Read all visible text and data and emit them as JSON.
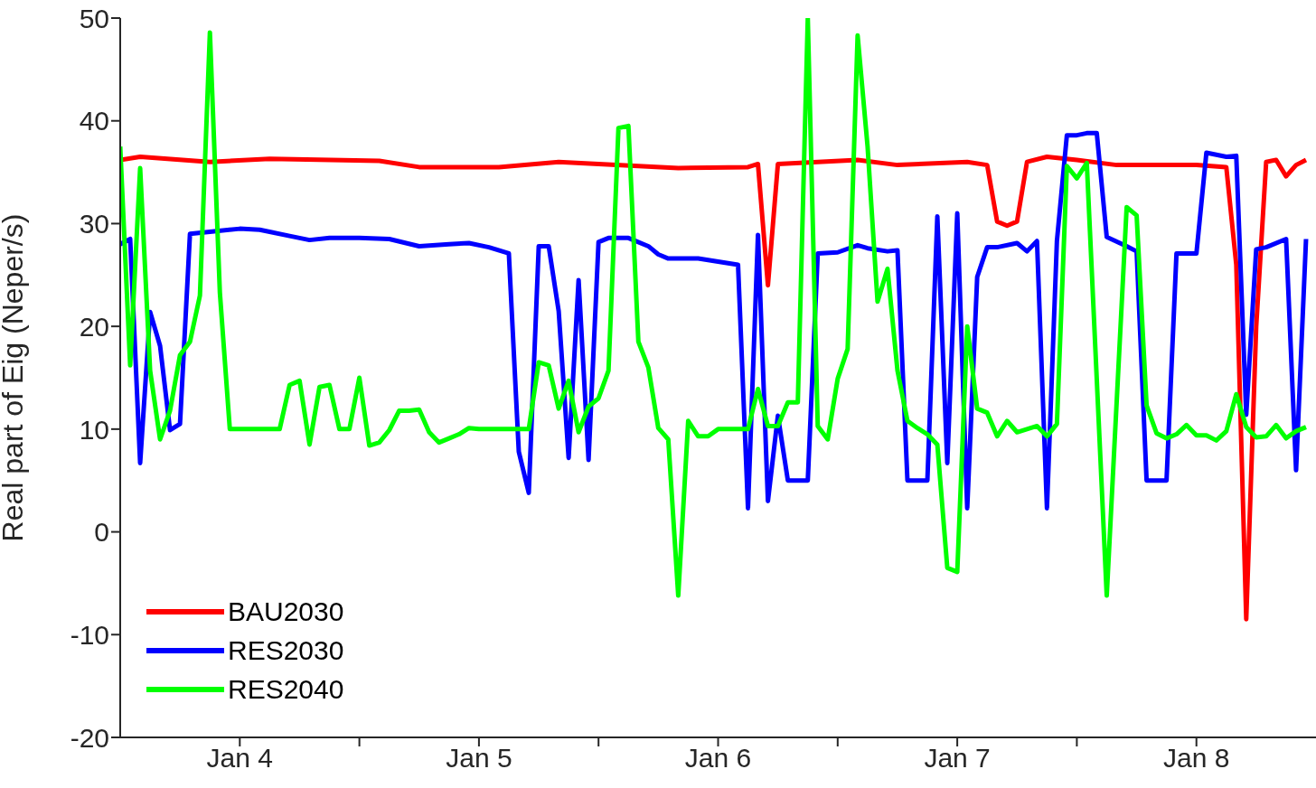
{
  "chart_data": {
    "type": "line",
    "ylabel": "Real part of Eig (Neper/s)",
    "xlim": [
      "--01-03T12:00",
      "--01-08T12:00"
    ],
    "ylim": [
      -20,
      50
    ],
    "yticks": [
      -20,
      -10,
      0,
      10,
      20,
      30,
      40,
      50
    ],
    "xticks": [
      {
        "value": "--01-04",
        "label": "Jan 4"
      },
      {
        "value": "--01-04T12:00",
        "label": null
      },
      {
        "value": "--01-05",
        "label": "Jan 5"
      },
      {
        "value": "--01-05T12:00",
        "label": null
      },
      {
        "value": "--01-06",
        "label": "Jan 6"
      },
      {
        "value": "--01-06T12:00",
        "label": null
      },
      {
        "value": "--01-07",
        "label": "Jan 7"
      },
      {
        "value": "--01-07T12:00",
        "label": null
      },
      {
        "value": "--01-08",
        "label": "Jan 8"
      }
    ],
    "legend": "bottom left",
    "series": [
      {
        "name": "BAU2030",
        "color": "#ff0000",
        "x": [
          "--01-03T12:00",
          "--01-03T14:00",
          "--01-03T21:00",
          "--01-04T03:00",
          "--01-04T14:00",
          "--01-04T18:00",
          "--01-05T02:00",
          "--01-05T08:00",
          "--01-05T20:00",
          "--01-06T03:00",
          "--01-06T04:00",
          "--01-06T05:00",
          "--01-06T06:00",
          "--01-06T14:00",
          "--01-06T18:00",
          "--01-07T01:00",
          "--01-07T03:00",
          "--01-07T04:00",
          "--01-07T05:00",
          "--01-07T06:00",
          "--01-07T07:00",
          "--01-07T09:00",
          "--01-07T12:00",
          "--01-07T16:00",
          "--01-08T00:00",
          "--01-08T03:00",
          "--01-08T04:00",
          "--01-08T05:00",
          "--01-08T06:00",
          "--01-08T07:00",
          "--01-08T08:00",
          "--01-08T09:00",
          "--01-08T10:00",
          "--01-08T11:00"
        ],
        "values": [
          36.2,
          36.5,
          36.0,
          36.3,
          36.1,
          35.5,
          35.5,
          36.0,
          35.4,
          35.5,
          35.8,
          24,
          35.8,
          36.2,
          35.7,
          36,
          35.7,
          30.2,
          29.8,
          30.2,
          36,
          36.5,
          36.2,
          35.7,
          35.7,
          35.5,
          26,
          -8.5,
          20,
          36,
          36.2,
          34.6,
          35.7,
          36.2
        ]
      },
      {
        "name": "RES2030",
        "color": "#0000ff",
        "x": [
          "--01-03T12:00",
          "--01-03T13:00",
          "--01-03T14:00",
          "--01-03T15:00",
          "--01-03T16:00",
          "--01-03T17:00",
          "--01-03T18:00",
          "--01-03T19:00",
          "--01-03T21:00",
          "--01-04T00:00",
          "--01-04T02:00",
          "--01-04T05:00",
          "--01-04T07:00",
          "--01-04T09:00",
          "--01-04T12:00",
          "--01-04T15:00",
          "--01-04T18:00",
          "--01-04T21:00",
          "--01-04T23:00",
          "--01-05T01:00",
          "--01-05T03:00",
          "--01-05T04:00",
          "--01-05T05:00",
          "--01-05T06:00",
          "--01-05T07:00",
          "--01-05T08:00",
          "--01-05T09:00",
          "--01-05T10:00",
          "--01-05T11:00",
          "--01-05T12:00",
          "--01-05T13:00",
          "--01-05T15:00",
          "--01-05T17:00",
          "--01-05T18:00",
          "--01-05T19:00",
          "--01-05T22:00",
          "--01-06T00:00",
          "--01-06T02:00",
          "--01-06T03:00",
          "--01-06T04:00",
          "--01-06T05:00",
          "--01-06T06:00",
          "--01-06T07:00",
          "--01-06T09:00",
          "--01-06T10:00",
          "--01-06T12:00",
          "--01-06T14:00",
          "--01-06T15:00",
          "--01-06T17:00",
          "--01-06T18:00",
          "--01-06T19:00",
          "--01-06T21:00",
          "--01-06T22:00",
          "--01-06T23:00",
          "--01-07T00:00",
          "--01-07T01:00",
          "--01-07T02:00",
          "--01-07T03:00",
          "--01-07T04:00",
          "--01-07T06:00",
          "--01-07T07:00",
          "--01-07T08:00",
          "--01-07T09:00",
          "--01-07T10:00",
          "--01-07T11:00",
          "--01-07T12:00",
          "--01-07T13:00",
          "--01-07T14:00",
          "--01-07T15:00",
          "--01-07T17:00",
          "--01-07T18:00",
          "--01-07T19:00",
          "--01-07T21:00",
          "--01-07T22:00",
          "--01-08T00:00",
          "--01-08T01:00",
          "--01-08T03:00",
          "--01-08T04:00",
          "--01-08T05:00",
          "--01-08T06:00",
          "--01-08T07:00",
          "--01-08T09:00",
          "--01-08T10:00",
          "--01-08T11:00"
        ],
        "values": [
          28,
          28.5,
          6.7,
          21.4,
          18.1,
          9.9,
          10.5,
          29,
          29.2,
          29.5,
          29.4,
          28.8,
          28.4,
          28.6,
          28.6,
          28.5,
          27.8,
          28,
          28.1,
          27.7,
          27.1,
          7.8,
          3.8,
          27.8,
          27.8,
          21.5,
          7.2,
          24.5,
          7,
          28.2,
          28.6,
          28.6,
          27.8,
          27,
          26.6,
          26.6,
          26.3,
          26,
          2.3,
          28.9,
          3,
          11.3,
          5,
          5,
          27.1,
          27.2,
          27.9,
          27.6,
          27.3,
          27.4,
          5,
          5,
          30.7,
          6.7,
          31,
          2.3,
          24.8,
          27.7,
          27.7,
          28.1,
          27.3,
          28.3,
          2.3,
          28.3,
          38.6,
          38.6,
          38.8,
          38.8,
          28.7,
          27.8,
          27.3,
          5,
          5,
          27.1,
          27.1,
          36.9,
          36.5,
          36.6,
          11.4,
          27.5,
          27.7,
          28.5,
          6,
          28.5
        ]
      },
      {
        "name": "RES2040",
        "color": "#00ff00",
        "x": [
          "--01-03T12:00",
          "--01-03T13:00",
          "--01-03T14:00",
          "--01-03T15:00",
          "--01-03T16:00",
          "--01-03T17:00",
          "--01-03T18:00",
          "--01-03T19:00",
          "--01-03T20:00",
          "--01-03T21:00",
          "--01-03T22:00",
          "--01-03T23:00",
          "--01-04T04:00",
          "--01-04T05:00",
          "--01-04T06:00",
          "--01-04T07:00",
          "--01-04T08:00",
          "--01-04T09:00",
          "--01-04T10:00",
          "--01-04T11:00",
          "--01-04T12:00",
          "--01-04T13:00",
          "--01-04T14:00",
          "--01-04T15:00",
          "--01-04T16:00",
          "--01-04T17:00",
          "--01-04T18:00",
          "--01-04T19:00",
          "--01-04T20:00",
          "--01-04T21:00",
          "--01-04T22:00",
          "--01-04T23:00",
          "--01-05T00:00",
          "--01-05T05:00",
          "--01-05T06:00",
          "--01-05T07:00",
          "--01-05T08:00",
          "--01-05T09:00",
          "--01-05T10:00",
          "--01-05T11:00",
          "--01-05T12:00",
          "--01-05T13:00",
          "--01-05T14:00",
          "--01-05T15:00",
          "--01-05T16:00",
          "--01-05T17:00",
          "--01-05T18:00",
          "--01-05T19:00",
          "--01-05T20:00",
          "--01-05T21:00",
          "--01-05T22:00",
          "--01-05T23:00",
          "--01-06T00:00",
          "--01-06T03:00",
          "--01-06T04:00",
          "--01-06T05:00",
          "--01-06T06:00",
          "--01-06T07:00",
          "--01-06T08:00",
          "--01-06T09:00",
          "--01-06T10:00",
          "--01-06T11:00",
          "--01-06T12:00",
          "--01-06T13:00",
          "--01-06T14:00",
          "--01-06T15:00",
          "--01-06T16:00",
          "--01-06T17:00",
          "--01-06T18:00",
          "--01-06T19:00",
          "--01-06T20:00",
          "--01-06T21:00",
          "--01-06T22:00",
          "--01-06T23:00",
          "--01-07T00:00",
          "--01-07T01:00",
          "--01-07T02:00",
          "--01-07T03:00",
          "--01-07T04:00",
          "--01-07T05:00",
          "--01-07T06:00",
          "--01-07T08:00",
          "--01-07T09:00",
          "--01-07T10:00",
          "--01-07T11:00",
          "--01-07T12:00",
          "--01-07T13:00",
          "--01-07T15:00",
          "--01-07T17:00",
          "--01-07T18:00",
          "--01-07T19:00",
          "--01-07T20:00",
          "--01-07T21:00",
          "--01-07T22:00",
          "--01-07T23:00",
          "--01-08T00:00",
          "--01-08T01:00",
          "--01-08T02:00",
          "--01-08T03:00",
          "--01-08T04:00",
          "--01-08T05:00",
          "--01-08T06:00",
          "--01-08T07:00",
          "--01-08T08:00",
          "--01-08T09:00",
          "--01-08T10:00",
          "--01-08T11:00"
        ],
        "values": [
          37.5,
          16.2,
          35.4,
          15.7,
          9,
          11.8,
          17.2,
          18.5,
          23,
          48.6,
          23.3,
          10,
          10,
          14.3,
          14.7,
          8.5,
          14.1,
          14.3,
          10,
          10,
          15,
          8.4,
          8.7,
          9.9,
          11.8,
          11.8,
          11.9,
          9.7,
          8.7,
          9.1,
          9.5,
          10.1,
          10,
          10,
          16.5,
          16.2,
          12,
          14.7,
          9.7,
          12.2,
          13,
          15.7,
          39.3,
          39.5,
          18.5,
          16,
          10.1,
          9,
          -6.2,
          10.8,
          9.3,
          9.3,
          10,
          10,
          13.9,
          10.3,
          10.3,
          12.6,
          12.6,
          50,
          10.3,
          9,
          14.9,
          17.8,
          48.3,
          37.5,
          22.4,
          25.6,
          15.7,
          10.8,
          10.1,
          9.5,
          8.5,
          -3.5,
          -3.9,
          20,
          12,
          11.6,
          9.3,
          10.8,
          9.7,
          10.3,
          9.3,
          10.5,
          35.6,
          34.4,
          35.9,
          -6.2,
          31.6,
          30.8,
          12.3,
          9.6,
          9.1,
          9.5,
          10.4,
          9.4,
          9.4,
          8.9,
          9.8,
          13.4,
          10.2,
          9.2,
          9.3,
          10.4,
          9.1,
          9.8,
          10.2
        ]
      }
    ]
  }
}
